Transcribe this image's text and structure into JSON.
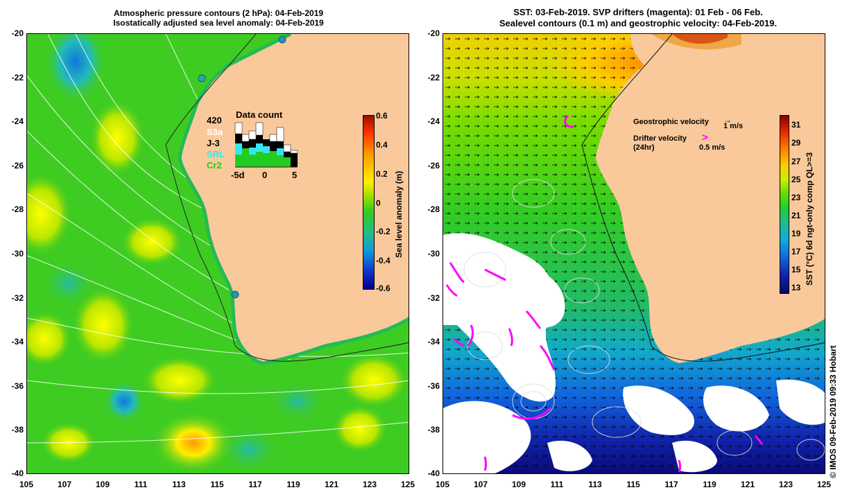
{
  "left_panel": {
    "title_line1": "Atmospheric pressure contours (2 hPa): 04-Feb-2019",
    "title_line2": "Isostatically adjusted sea level anomaly: 04-Feb-2019",
    "colorbar": {
      "label": "Sea level anomaly (m)",
      "ticks": [
        "0.6",
        "0.4",
        "0.2",
        "0",
        "-0.2",
        "-0.4",
        "-0.6"
      ]
    },
    "data_count": {
      "title": "Data count",
      "total": "420",
      "satellites": [
        {
          "name": "S3a",
          "color": "#ffffff"
        },
        {
          "name": "J-3",
          "color": "#000000"
        },
        {
          "name": "SRL",
          "color": "#33e6f0"
        },
        {
          "name": "Cr2",
          "color": "#22cc22"
        }
      ],
      "axis_ticks": [
        "-5d",
        "0",
        "5"
      ]
    }
  },
  "right_panel": {
    "title_line1": "SST: 03-Feb-2019. SVP drifters (magenta): 01 Feb - 06 Feb.",
    "title_line2": "Sealevel contours (0.1 m) and geostrophic velocity: 04-Feb-2019.",
    "geostrophic_label": "Geostrophic velocity",
    "geostrophic_scale": "1 m/s",
    "drifter_label_line1": "Drifter velocity",
    "drifter_label_line2": "(24hr)",
    "drifter_scale": "0.5 m/s",
    "colorbar": {
      "label": "SST (°C) 6d ngt-only comp QL>=3",
      "ticks": [
        "31",
        "29",
        "27",
        "25",
        "23",
        "21",
        "19",
        "17",
        "15",
        "13"
      ]
    }
  },
  "axes": {
    "y_ticks": [
      "-20",
      "-22",
      "-24",
      "-26",
      "-28",
      "-30",
      "-32",
      "-34",
      "-36",
      "-38",
      "-40"
    ],
    "x_ticks": [
      "105",
      "107",
      "109",
      "111",
      "113",
      "115",
      "117",
      "119",
      "121",
      "123",
      "125"
    ]
  },
  "credit": "© IMOS 09-Feb-2019 09:33 Hobart",
  "colors": {
    "land": "#f9c99b",
    "ocean_green": "#33cc22",
    "cloud": "#ffffff",
    "drifter": "#ff00ff"
  }
}
